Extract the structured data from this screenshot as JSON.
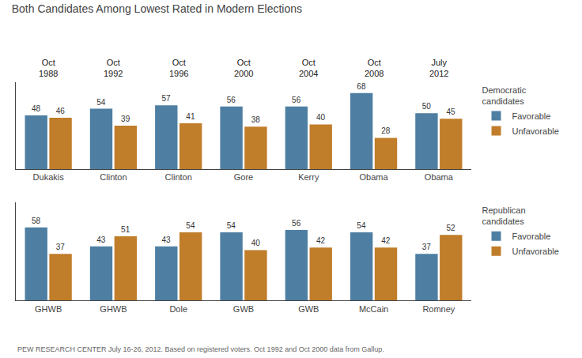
{
  "chart_data": [
    {
      "type": "bar",
      "title": "Both Candidates Among Lowest Rated in Modern Elections",
      "legend_title": "Democratic\ncandidates",
      "categories": [
        "Dukakis",
        "Clinton",
        "Clinton",
        "Gore",
        "Kerry",
        "Obama",
        "Obama"
      ],
      "series": [
        {
          "name": "Favorable",
          "color": "#4e7fa3",
          "values": [
            48,
            54,
            57,
            56,
            56,
            68,
            50
          ]
        },
        {
          "name": "Unfavorable",
          "color": "#c07d2a",
          "values": [
            46,
            39,
            41,
            38,
            40,
            28,
            45
          ]
        }
      ],
      "annotations": [
        {
          "text": "Oct\n1988",
          "x": 0
        },
        {
          "text": "Oct\n1992",
          "x": 1
        },
        {
          "text": "Oct\n1996",
          "x": 2
        },
        {
          "text": "Oct\n2000",
          "x": 3
        },
        {
          "text": "Oct\n2004",
          "x": 4
        },
        {
          "text": "Oct\n2008",
          "x": 5
        },
        {
          "text": "July\n2012",
          "x": 6
        }
      ],
      "ylim": [
        0,
        78
      ],
      "grid": false,
      "legend": "right",
      "data_labels": true,
      "tick_labels": "x"
    },
    {
      "type": "bar",
      "legend_title": "Republican\ncandidates",
      "categories": [
        "GHWB",
        "GHWB",
        "Dole",
        "GWB",
        "GWB",
        "McCain",
        "Romney"
      ],
      "series": [
        {
          "name": "Favorable",
          "color": "#4e7fa3",
          "values": [
            58,
            43,
            43,
            54,
            56,
            54,
            37
          ]
        },
        {
          "name": "Unfavorable",
          "color": "#c07d2a",
          "values": [
            37,
            51,
            54,
            40,
            42,
            42,
            52
          ]
        }
      ],
      "annotations": [
        {
          "text": "PEW RESEARCH CENTER July 16-26, 2012. Based on registered voters. Oct 1992 and Oct 2000 data from Gallup."
        }
      ],
      "ylim": [
        0,
        78
      ],
      "grid": false,
      "legend": "right",
      "data_labels": true,
      "tick_labels": "x"
    }
  ]
}
